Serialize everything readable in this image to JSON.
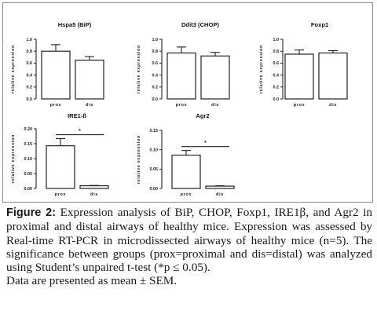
{
  "figure": {
    "caption_label": "Figure 2:",
    "caption_lines": [
      "Expression analysis of BiP, CHOP, Foxp1, IRE1β, and Agr2",
      "in proximal and distal airways of healthy mice. Expression was",
      "assessed by Real-time RT-PCR in microdissected airways of healthy",
      "mice (n=5). The significance between groups (prox=proximal and",
      "dis=distal) was analyzed using Student’s unpaired t-test (*p ≤ 0.05).",
      "Data are presented as mean ± SEM."
    ]
  },
  "colors": {
    "axis": "#222222",
    "bar_fill": "#ffffff",
    "bar_stroke": "#222222",
    "frame": "#8a8a8a"
  },
  "chart_data": [
    {
      "type": "bar",
      "title": "Hspa5 (BiP)",
      "ylabel": "relative expression",
      "categories": [
        "prox",
        "dis"
      ],
      "values": [
        0.8,
        0.65
      ],
      "errors": [
        0.11,
        0.06
      ],
      "ylim": [
        0.0,
        1.0
      ],
      "yticks": [
        "0.0",
        "0.2",
        "0.4",
        "0.6",
        "0.8",
        "1.0"
      ],
      "significance": null
    },
    {
      "type": "bar",
      "title": "Ddit3 (CHOP)",
      "ylabel": "relative expression",
      "categories": [
        "prox",
        "dis"
      ],
      "values": [
        0.77,
        0.72
      ],
      "errors": [
        0.1,
        0.06
      ],
      "ylim": [
        0.0,
        1.0
      ],
      "yticks": [
        "0.0",
        "0.2",
        "0.4",
        "0.6",
        "0.8",
        "1.0"
      ],
      "significance": null
    },
    {
      "type": "bar",
      "title": "Foxp1",
      "ylabel": "relative expression",
      "categories": [
        "prox",
        "dis"
      ],
      "values": [
        0.75,
        0.77
      ],
      "errors": [
        0.07,
        0.04
      ],
      "ylim": [
        0.0,
        1.0
      ],
      "yticks": [
        "0.0",
        "0.2",
        "0.4",
        "0.6",
        "0.8",
        "1.0"
      ],
      "significance": null
    },
    {
      "type": "bar",
      "title": "IRE1-ß",
      "ylabel": "relative expression",
      "categories": [
        "prox",
        "dis"
      ],
      "values": [
        0.143,
        0.009
      ],
      "errors": [
        0.024,
        0.001
      ],
      "ylim": [
        0.0,
        0.2
      ],
      "yticks": [
        "0.00",
        "0.05",
        "0.10",
        "0.15",
        "0.20"
      ],
      "significance": "*"
    },
    {
      "type": "bar",
      "title": "Agr2",
      "ylabel": "relative expression",
      "categories": [
        "prox",
        "dis"
      ],
      "values": [
        0.086,
        0.006
      ],
      "errors": [
        0.012,
        0.001
      ],
      "ylim": [
        0.0,
        0.15
      ],
      "yticks": [
        "0.00",
        "0.05",
        "0.10",
        "0.15"
      ],
      "significance": "*"
    }
  ]
}
